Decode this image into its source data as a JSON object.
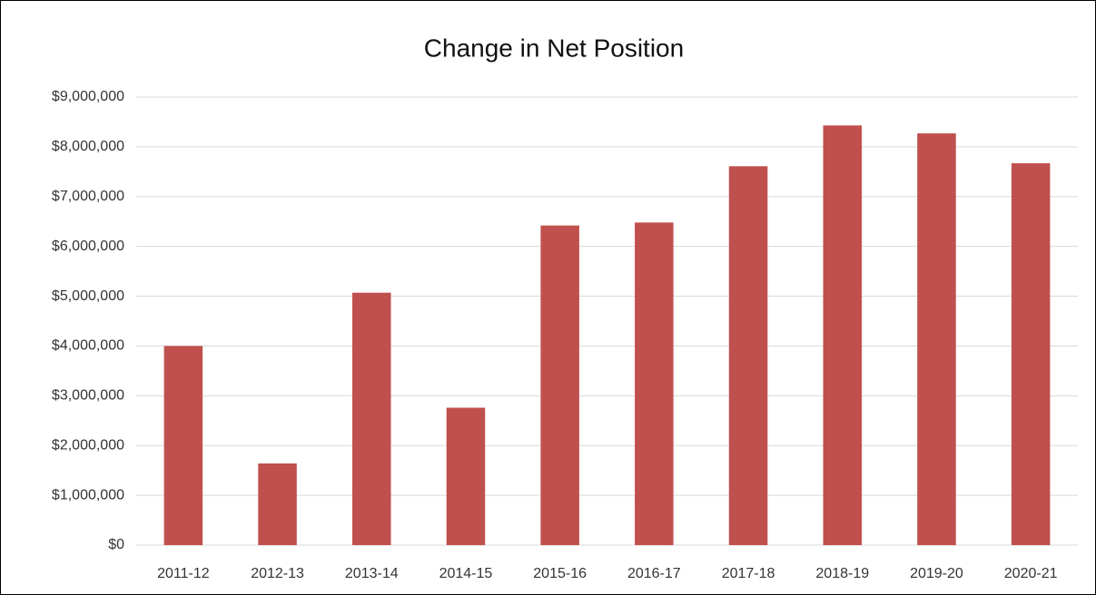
{
  "chart_data": {
    "type": "bar",
    "title": "Change in Net Position",
    "categories": [
      "2011-12",
      "2012-13",
      "2013-14",
      "2014-15",
      "2015-16",
      "2016-17",
      "2017-18",
      "2018-19",
      "2019-20",
      "2020-21"
    ],
    "values": [
      4000000,
      1640000,
      5070000,
      2760000,
      6420000,
      6480000,
      7610000,
      8430000,
      8270000,
      7670000
    ],
    "color": "#c0504d",
    "ylim": [
      0,
      9000000
    ],
    "yticks": [
      {
        "value": 0,
        "label": "$0"
      },
      {
        "value": 1000000,
        "label": "$1,000,000"
      },
      {
        "value": 2000000,
        "label": "$2,000,000"
      },
      {
        "value": 3000000,
        "label": "$3,000,000"
      },
      {
        "value": 4000000,
        "label": "$4,000,000"
      },
      {
        "value": 5000000,
        "label": "$5,000,000"
      },
      {
        "value": 6000000,
        "label": "$6,000,000"
      },
      {
        "value": 7000000,
        "label": "$7,000,000"
      },
      {
        "value": 8000000,
        "label": "$8,000,000"
      },
      {
        "value": 9000000,
        "label": "$9,000,000"
      }
    ],
    "grid": true
  }
}
